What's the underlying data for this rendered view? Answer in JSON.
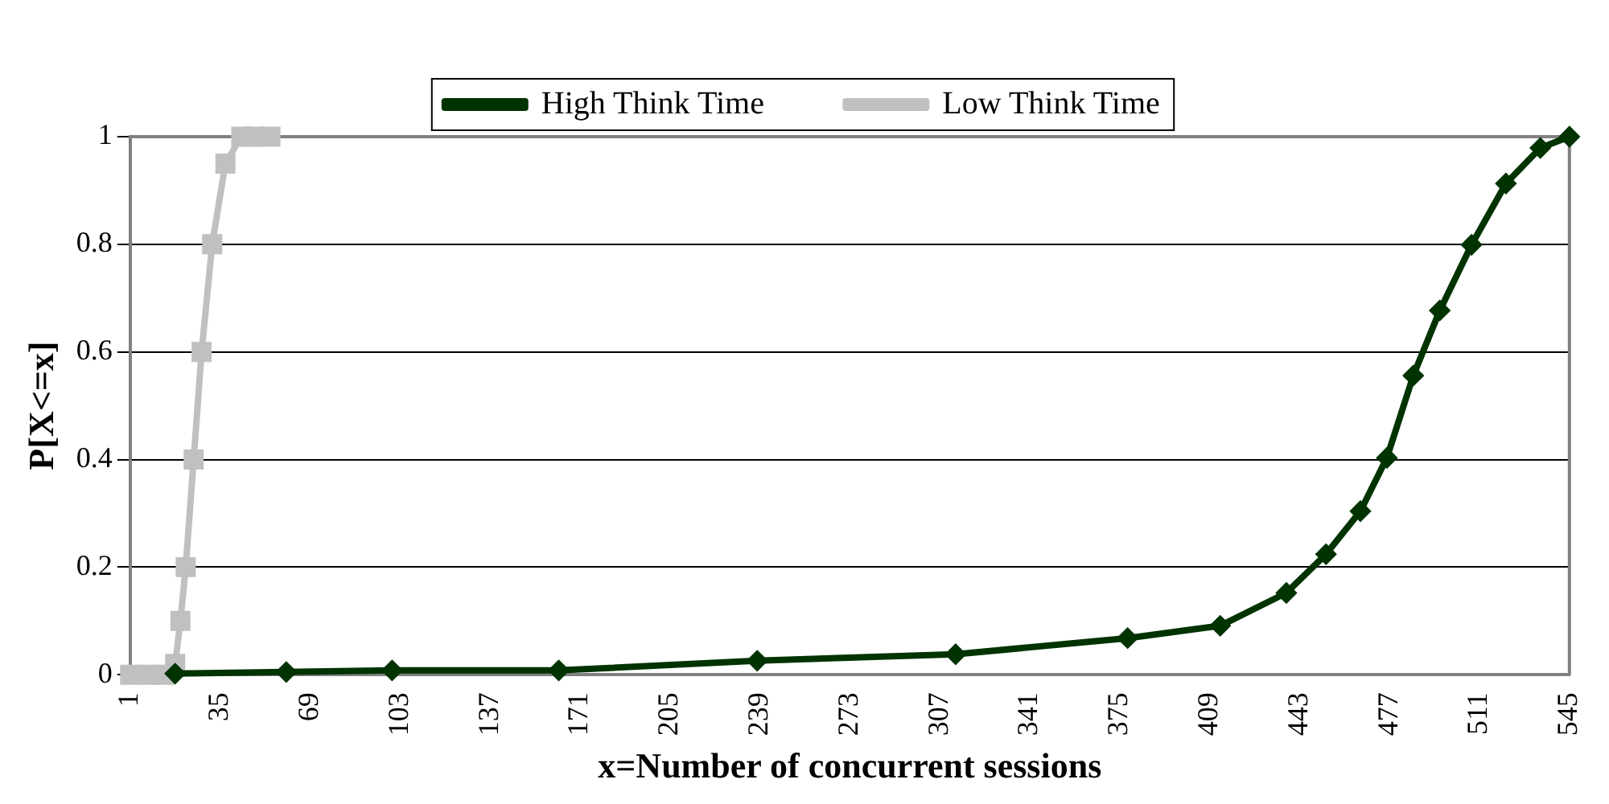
{
  "chart_data": {
    "type": "line",
    "xlabel": "x=Number of concurrent sessions",
    "ylabel": "P[X<=x]",
    "xlim": [
      1,
      545
    ],
    "xticks": [
      1,
      35,
      69,
      103,
      137,
      171,
      205,
      239,
      273,
      307,
      341,
      375,
      409,
      443,
      477,
      511,
      545
    ],
    "ylim": [
      0,
      1
    ],
    "yticks": [
      0,
      0.2,
      0.4,
      0.6,
      0.8,
      1
    ],
    "grid": "y",
    "legend": "top",
    "series": [
      {
        "name": "High Think Time",
        "color": "#003300",
        "marker": "diamond",
        "x": [
          18,
          60,
          100,
          163,
          238,
          313,
          378,
          413,
          438,
          453,
          466,
          476,
          486,
          496,
          508,
          521,
          534,
          545
        ],
        "values": [
          0.002,
          0.005,
          0.008,
          0.008,
          0.026,
          0.038,
          0.068,
          0.091,
          0.152,
          0.224,
          0.304,
          0.403,
          0.556,
          0.677,
          0.799,
          0.913,
          0.979,
          1
        ]
      },
      {
        "name": "Low Think Time",
        "color": "#c0c0c0",
        "marker": "square",
        "x": [
          1,
          8,
          14,
          18,
          20,
          22,
          25,
          28,
          32,
          37,
          43,
          48,
          54
        ],
        "values": [
          0,
          0,
          0,
          0.02,
          0.1,
          0.2,
          0.4,
          0.6,
          0.8,
          0.95,
          1,
          1,
          1
        ]
      }
    ]
  }
}
